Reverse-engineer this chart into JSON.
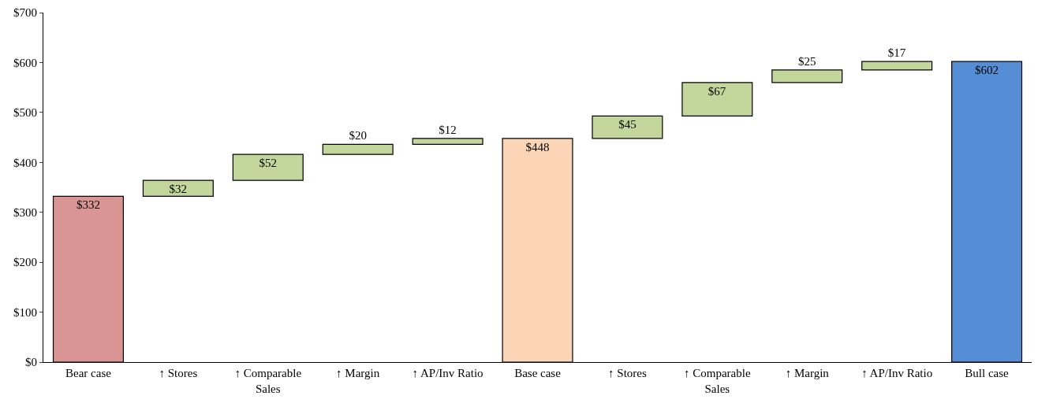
{
  "chart_data": {
    "type": "bar",
    "categories": [
      "Bear case",
      "↑ Stores",
      "↑ Comparable Sales",
      "↑ Margin",
      "↑ AP/Inv Ratio",
      "Base case",
      "↑ Stores",
      "↑ Comparable Sales",
      "↑ Margin",
      "↑ AP/Inv Ratio",
      "Bull case"
    ],
    "values": [
      332,
      32,
      52,
      20,
      12,
      448,
      45,
      67,
      25,
      17,
      602
    ],
    "base": [
      0,
      332,
      364,
      416,
      436,
      0,
      448,
      493,
      560,
      585,
      0
    ],
    "colors": [
      "#d99594",
      "#c3d69b",
      "#c3d69b",
      "#c3d69b",
      "#c3d69b",
      "#fbd5b5",
      "#c3d69b",
      "#c3d69b",
      "#c3d69b",
      "#c3d69b",
      "#558ed5"
    ],
    "value_labels": [
      "$332",
      "$32",
      "$52",
      "$20",
      "$12",
      "$448",
      "$45",
      "$67",
      "$25",
      "$17",
      "$602"
    ],
    "ylim": [
      0,
      700
    ],
    "yticks": [
      {
        "value": 0,
        "label": "$0"
      },
      {
        "value": 100,
        "label": "$100"
      },
      {
        "value": 200,
        "label": "$200"
      },
      {
        "value": 300,
        "label": "$300"
      },
      {
        "value": 400,
        "label": "$400"
      },
      {
        "value": 500,
        "label": "$500"
      },
      {
        "value": 600,
        "label": "$600"
      },
      {
        "value": 700,
        "label": "$700"
      }
    ]
  }
}
